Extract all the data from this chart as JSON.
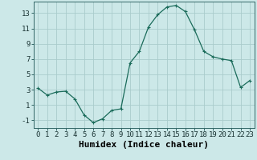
{
  "xlabel": "Humidex (Indice chaleur)",
  "ylabel": "",
  "x_values": [
    0,
    1,
    2,
    3,
    4,
    5,
    6,
    7,
    8,
    9,
    10,
    11,
    12,
    13,
    14,
    15,
    16,
    17,
    18,
    19,
    20,
    21,
    22,
    23
  ],
  "y_values": [
    3.2,
    2.3,
    2.7,
    2.8,
    1.8,
    -0.3,
    -1.3,
    -0.8,
    0.3,
    0.5,
    6.5,
    8.0,
    11.2,
    12.8,
    13.8,
    14.0,
    13.2,
    10.8,
    8.0,
    7.3,
    7.0,
    6.8,
    3.3,
    4.2
  ],
  "line_color": "#1a6b5a",
  "marker": "+",
  "markersize": 3,
  "linewidth": 0.9,
  "bg_color": "#cce8e8",
  "grid_color": "#aacccc",
  "ylim": [
    -2,
    14.5
  ],
  "xlim": [
    -0.5,
    23.5
  ],
  "yticks": [
    -1,
    1,
    3,
    5,
    7,
    9,
    11,
    13
  ],
  "xticks": [
    0,
    1,
    2,
    3,
    4,
    5,
    6,
    7,
    8,
    9,
    10,
    11,
    12,
    13,
    14,
    15,
    16,
    17,
    18,
    19,
    20,
    21,
    22,
    23
  ],
  "tick_fontsize": 6.5,
  "xlabel_fontsize": 8
}
